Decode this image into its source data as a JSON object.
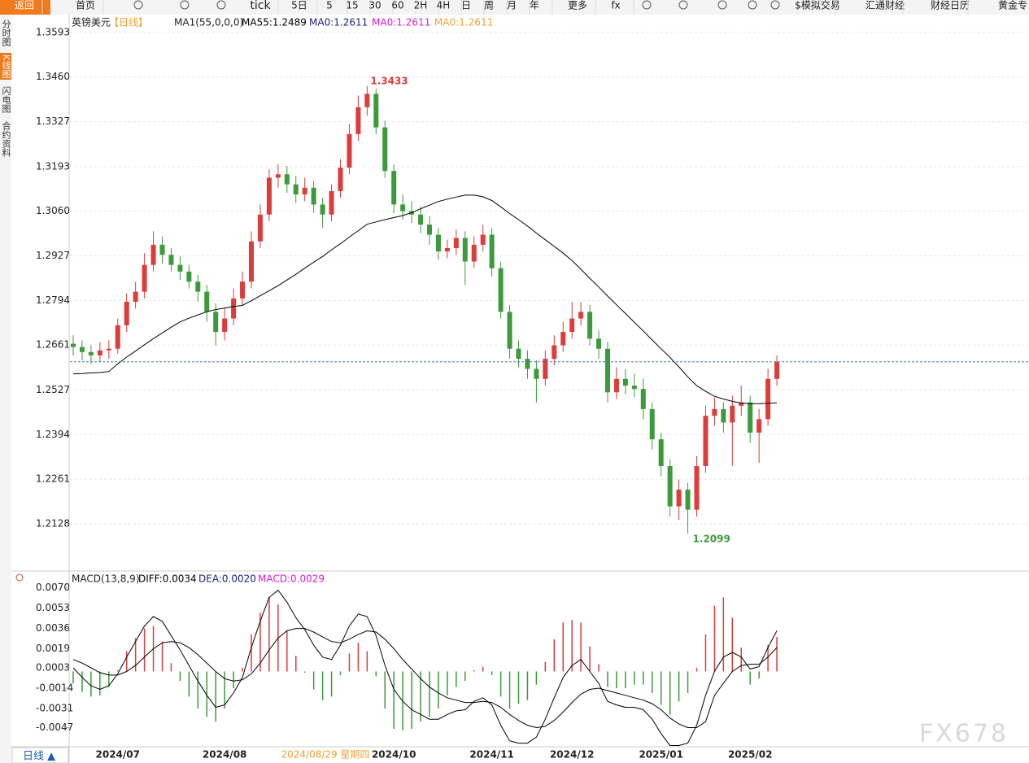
{
  "toolbar": {
    "items": [
      "返回",
      "首页",
      "tick",
      "5日",
      "5",
      "15",
      "30",
      "60",
      "2H",
      "4H",
      "日",
      "周",
      "月",
      "年",
      "更多",
      "fx",
      "$模拟交易",
      "汇通财经",
      "财经日历",
      "黄金专"
    ]
  },
  "sidebar": [
    "分时图",
    "K线图",
    "闪电图",
    "合约资料"
  ],
  "footer": {
    "period": "日线 ▲",
    "cursor_label": "2024/08/29 星期四"
  },
  "watermark": "FX678",
  "chart_data": [
    {
      "type": "candlestick",
      "title": "英镑美元",
      "period": "【日线】",
      "indicator": "MA1(55,0,0,0)",
      "up_color": "#dc3c3c",
      "down_color": "#3c9a3c",
      "grid": true,
      "last_line_color": "#3a7bd5",
      "ylim": [
        1.1992,
        1.3617
      ],
      "yticks": [
        1.3593,
        {
          "value": 1.346,
          "label": "1.3460"
        },
        1.3327,
        1.3193,
        {
          "value": 1.306,
          "label": "1.3060"
        },
        1.2927,
        1.2794,
        1.2661,
        1.2527,
        1.2394,
        1.2261,
        1.2128
      ],
      "categories": [
        null,
        null,
        null,
        null,
        null,
        "2024/07",
        null,
        null,
        null,
        null,
        null,
        null,
        null,
        null,
        null,
        null,
        null,
        "2024/08",
        null,
        null,
        null,
        null,
        null,
        null,
        null,
        null,
        null,
        null,
        null,
        null,
        null,
        null,
        null,
        null,
        null,
        null,
        "2024/10",
        null,
        null,
        null,
        null,
        null,
        null,
        null,
        null,
        null,
        null,
        "2024/11",
        null,
        null,
        null,
        null,
        null,
        null,
        null,
        null,
        "2024/12",
        null,
        null,
        null,
        null,
        null,
        null,
        null,
        null,
        null,
        "2025/01",
        null,
        null,
        null,
        null,
        null,
        null,
        null,
        null,
        null,
        "2025/02",
        null,
        null,
        null
      ],
      "open": [
        1.2665,
        1.2655,
        1.264,
        1.263,
        1.2645,
        1.265,
        1.272,
        1.279,
        1.282,
        1.29,
        1.296,
        1.293,
        1.29,
        1.288,
        1.285,
        1.282,
        1.276,
        1.27,
        1.274,
        1.28,
        1.285,
        1.297,
        1.305,
        1.316,
        1.317,
        1.314,
        1.311,
        1.313,
        1.308,
        1.305,
        1.312,
        1.319,
        1.329,
        1.337,
        1.341,
        1.331,
        1.318,
        1.308,
        1.306,
        1.305,
        1.302,
        1.299,
        1.294,
        1.295,
        1.298,
        1.291,
        1.296,
        1.299,
        1.289,
        1.276,
        1.265,
        1.262,
        1.259,
        1.256,
        1.262,
        1.266,
        1.27,
        1.274,
        1.276,
        1.268,
        1.265,
        1.252,
        1.256,
        1.254,
        1.253,
        1.247,
        1.238,
        1.23,
        1.218,
        1.223,
        1.217,
        1.23,
        1.245,
        1.247,
        1.243,
        1.248,
        1.249,
        1.24,
        1.244,
        1.256
      ],
      "high": [
        1.269,
        1.2675,
        1.266,
        1.267,
        1.2675,
        1.274,
        1.2815,
        1.285,
        1.2935,
        1.3,
        1.2985,
        1.295,
        1.2925,
        1.29,
        1.287,
        1.284,
        1.2785,
        1.277,
        1.283,
        1.288,
        1.3,
        1.308,
        1.3185,
        1.32,
        1.3195,
        1.3165,
        1.316,
        1.315,
        1.31,
        1.314,
        1.3215,
        1.332,
        1.3405,
        1.3433,
        1.3425,
        1.333,
        1.32,
        1.311,
        1.309,
        1.3075,
        1.3045,
        1.301,
        1.2975,
        1.3005,
        1.3,
        1.2985,
        1.302,
        1.301,
        1.291,
        1.278,
        1.2675,
        1.2645,
        1.2615,
        1.2645,
        1.269,
        1.273,
        1.279,
        1.279,
        1.278,
        1.2705,
        1.267,
        1.2595,
        1.259,
        1.2575,
        1.256,
        1.249,
        1.24,
        1.232,
        1.226,
        1.225,
        1.233,
        1.248,
        1.2505,
        1.249,
        1.251,
        1.254,
        1.251,
        1.247,
        1.259,
        1.263
      ],
      "low": [
        1.263,
        1.2615,
        1.2605,
        1.261,
        1.262,
        1.2635,
        1.27,
        1.277,
        1.28,
        1.288,
        1.2905,
        1.288,
        1.2855,
        1.283,
        1.279,
        1.273,
        1.266,
        1.2675,
        1.272,
        1.278,
        1.283,
        1.295,
        1.303,
        1.313,
        1.3115,
        1.3085,
        1.309,
        1.3055,
        1.301,
        1.303,
        1.31,
        1.317,
        1.327,
        1.3345,
        1.329,
        1.316,
        1.3055,
        1.3035,
        1.3025,
        1.2995,
        1.296,
        1.2915,
        1.292,
        1.293,
        1.284,
        1.289,
        1.294,
        1.2865,
        1.274,
        1.262,
        1.2595,
        1.256,
        1.249,
        1.254,
        1.26,
        1.264,
        1.268,
        1.272,
        1.266,
        1.262,
        1.249,
        1.25,
        1.2515,
        1.2505,
        1.244,
        1.235,
        1.227,
        1.215,
        1.214,
        1.2099,
        1.215,
        1.228,
        1.242,
        1.24,
        1.23,
        1.245,
        1.237,
        1.231,
        1.242,
        1.254
      ],
      "close": [
        1.2655,
        1.264,
        1.263,
        1.2645,
        1.265,
        1.272,
        1.279,
        1.282,
        1.29,
        1.296,
        1.293,
        1.29,
        1.288,
        1.285,
        1.282,
        1.276,
        1.27,
        1.274,
        1.28,
        1.285,
        1.297,
        1.305,
        1.316,
        1.317,
        1.314,
        1.311,
        1.313,
        1.308,
        1.305,
        1.312,
        1.319,
        1.329,
        1.337,
        1.341,
        1.331,
        1.318,
        1.308,
        1.306,
        1.305,
        1.302,
        1.299,
        1.294,
        1.295,
        1.298,
        1.291,
        1.296,
        1.299,
        1.289,
        1.276,
        1.265,
        1.262,
        1.259,
        1.256,
        1.262,
        1.266,
        1.27,
        1.274,
        1.276,
        1.268,
        1.265,
        1.252,
        1.256,
        1.254,
        1.253,
        1.247,
        1.238,
        1.23,
        1.218,
        1.223,
        1.217,
        1.23,
        1.245,
        1.247,
        1.243,
        1.248,
        1.249,
        1.24,
        1.244,
        1.256,
        1.2611
      ],
      "series": [
        {
          "name": "MA55:1.2489",
          "color": "#000000",
          "values": [
            1.2575,
            1.2576,
            1.2578,
            1.2579,
            1.2582,
            1.2605,
            1.2625,
            1.2643,
            1.2662,
            1.268,
            1.2697,
            1.2714,
            1.273,
            1.2741,
            1.2751,
            1.276,
            1.2767,
            1.2771,
            1.2776,
            1.2779,
            1.2793,
            1.2808,
            1.2823,
            1.2838,
            1.2855,
            1.2872,
            1.289,
            1.2908,
            1.2925,
            1.2945,
            1.2963,
            1.2983,
            1.3002,
            1.3021,
            1.3028,
            1.3035,
            1.3041,
            1.3047,
            1.3056,
            1.3067,
            1.3078,
            1.3089,
            1.3096,
            1.3102,
            1.3108,
            1.3108,
            1.3103,
            1.3092,
            1.3073,
            1.3053,
            1.3035,
            1.3016,
            1.2995,
            1.2975,
            1.2955,
            1.2935,
            1.2913,
            1.2887,
            1.286,
            1.2834,
            1.2807,
            1.2781,
            1.2755,
            1.2729,
            1.2703,
            1.2676,
            1.265,
            1.2624,
            1.2596,
            1.2566,
            1.254,
            1.2523,
            1.2508,
            1.25,
            1.2493,
            1.2488,
            1.2486,
            1.2486,
            1.2487,
            1.2489
          ]
        }
      ],
      "extra_legend": [
        {
          "text": "MA0:1.2611",
          "color": "#1a237e"
        },
        {
          "text": "MA0:1.2611",
          "color": "#d81bd8"
        },
        {
          "text": "MA0:1.2611",
          "color": "#f0a030"
        }
      ]
    },
    {
      "type": "macd",
      "title": "MACD(13,8,9)",
      "grid": false,
      "ylim": [
        -0.0063,
        0.0082
      ],
      "yticks": [
        {
          "value": 0.007,
          "label": "0.0070"
        },
        0.0053,
        0.0036,
        0.0019,
        0.0003,
        -0.0014,
        -0.0031,
        -0.0047
      ],
      "series": [
        {
          "name": "DIFF:0.0034",
          "color": "#000000",
          "label_color": "#000000",
          "values": [
            0.0003,
            -0.0005,
            -0.0012,
            -0.0015,
            -0.0012,
            -0.0002,
            0.0012,
            0.0025,
            0.0038,
            0.0046,
            0.0042,
            0.003,
            0.0018,
            0.0005,
            -0.0008,
            -0.002,
            -0.003,
            -0.0028,
            -0.0018,
            -0.0005,
            0.002,
            0.0042,
            0.0062,
            0.0068,
            0.0058,
            0.0045,
            0.0035,
            0.0022,
            0.0012,
            0.001,
            0.0022,
            0.0038,
            0.0048,
            0.0046,
            0.003,
            0.0005,
            -0.0015,
            -0.0025,
            -0.0032,
            -0.0036,
            -0.004,
            -0.004,
            -0.0036,
            -0.0033,
            -0.0032,
            -0.0025,
            -0.0022,
            -0.0028,
            -0.0045,
            -0.0058,
            -0.006,
            -0.006,
            -0.0055,
            -0.004,
            -0.0022,
            -0.0005,
            0.0005,
            0.001,
            0,
            -0.001,
            -0.0025,
            -0.0028,
            -0.003,
            -0.003,
            -0.0032,
            -0.004,
            -0.0052,
            -0.0062,
            -0.0062,
            -0.006,
            -0.0045,
            -0.002,
            0,
            0.0012,
            0.0016,
            0.0012,
            0.0002,
            0.0004,
            0.002,
            0.0034
          ]
        },
        {
          "name": "DEA:0.0020",
          "color": "#000000",
          "label_color": "#1a237e",
          "values": [
            0.001,
            0.0007,
            0.0003,
            -0.0001,
            -0.0003,
            -0.0003,
            0,
            0.0005,
            0.0012,
            0.0019,
            0.0024,
            0.0025,
            0.0024,
            0.002,
            0.0014,
            0.0007,
            0,
            -0.0006,
            -0.0008,
            -0.0007,
            -0.0002,
            0.0007,
            0.0018,
            0.0028,
            0.0034,
            0.0036,
            0.0036,
            0.0033,
            0.0029,
            0.0025,
            0.0024,
            0.0027,
            0.0031,
            0.0034,
            0.0033,
            0.0027,
            0.0019,
            0.001,
            0.0002,
            -0.0006,
            -0.0013,
            -0.0018,
            -0.0022,
            -0.0024,
            -0.0026,
            -0.0026,
            -0.0025,
            -0.0026,
            -0.003,
            -0.0036,
            -0.0041,
            -0.0045,
            -0.0047,
            -0.0046,
            -0.0041,
            -0.0034,
            -0.0026,
            -0.0019,
            -0.0015,
            -0.0014,
            -0.0016,
            -0.0018,
            -0.002,
            -0.0022,
            -0.0024,
            -0.0027,
            -0.0032,
            -0.0039,
            -0.0044,
            -0.0047,
            -0.0047,
            -0.0042,
            -0.002,
            -0.001,
            0,
            0.0005,
            0.0006,
            0.0006,
            0.0012,
            0.002
          ]
        }
      ],
      "bars": {
        "name": "MACD:0.0029",
        "label_color": "#d81bd8",
        "up_color": "#dc3c3c",
        "down_color": "#3c9a3c",
        "values": [
          -0.001,
          -0.0017,
          -0.0021,
          -0.002,
          -0.0013,
          0.0001,
          0.0017,
          0.0028,
          0.0036,
          0.0038,
          0.0025,
          0.0007,
          -0.0008,
          -0.0021,
          -0.0031,
          -0.0038,
          -0.0042,
          -0.0031,
          -0.0014,
          0.0003,
          0.0031,
          0.0049,
          0.0062,
          0.0056,
          0.0034,
          0.0013,
          -0.0001,
          -0.0015,
          -0.0024,
          -0.0021,
          -0.0003,
          0.0015,
          0.0024,
          0.0017,
          -0.0004,
          -0.0031,
          -0.0048,
          -0.0049,
          -0.0048,
          -0.0042,
          -0.0038,
          -0.0031,
          -0.002,
          -0.0013,
          -0.0008,
          0.0001,
          0.0004,
          -0.0003,
          -0.0021,
          -0.0031,
          -0.0027,
          -0.0024,
          -0.0011,
          0.0008,
          0.0027,
          0.0041,
          0.0043,
          0.0041,
          0.0021,
          0.0006,
          -0.0013,
          -0.0014,
          -0.0014,
          -0.0011,
          -0.0011,
          -0.0018,
          -0.0028,
          -0.0036,
          -0.0025,
          -0.0018,
          0.0003,
          0.0031,
          0.0055,
          0.0062,
          0.0045,
          0.002,
          -0.0011,
          -0.0006,
          0.0022,
          0.0029
        ]
      }
    }
  ]
}
